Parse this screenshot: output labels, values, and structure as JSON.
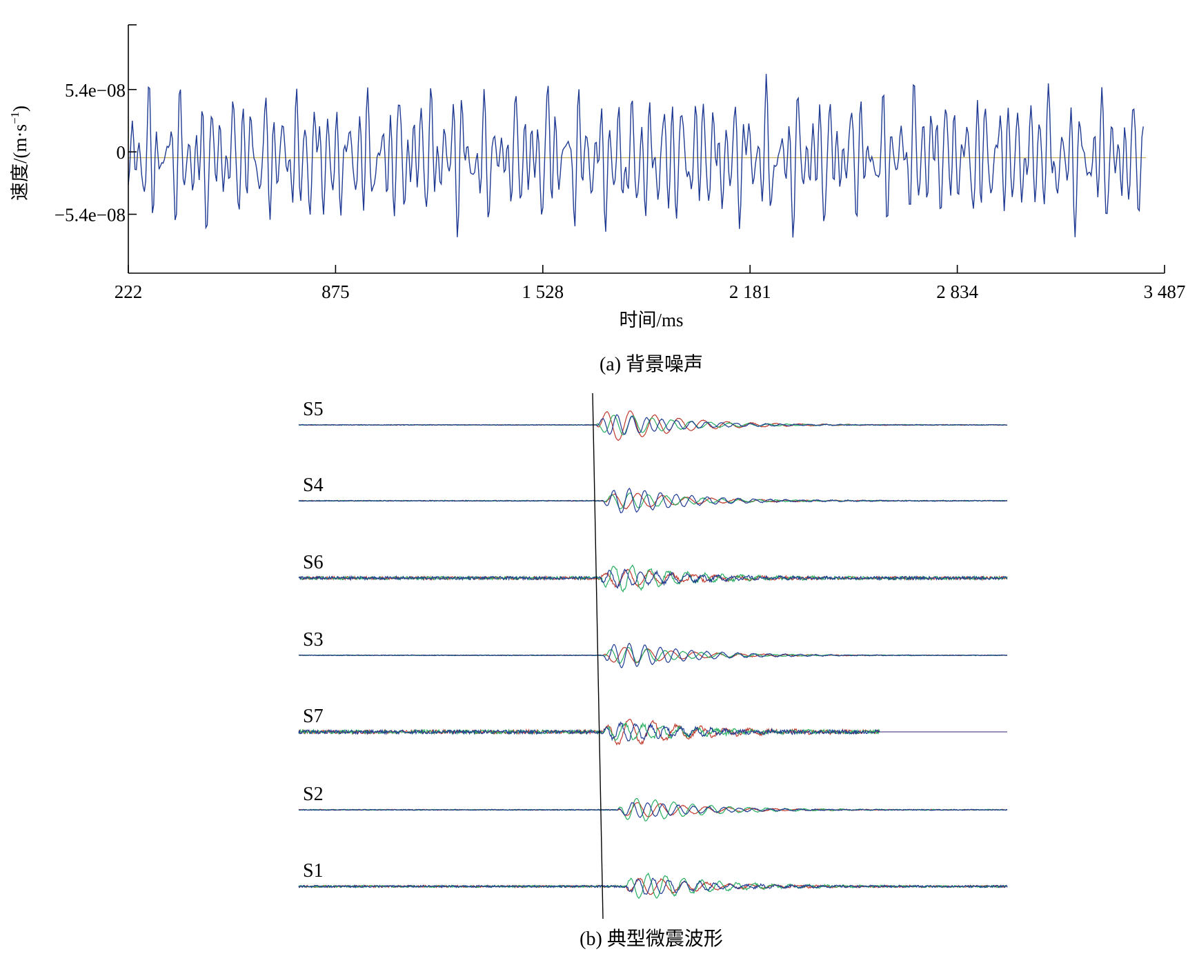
{
  "chart_data": [
    {
      "id": "a",
      "type": "line",
      "caption": "(a) 背景噪声",
      "xlabel": "时间/ms",
      "ylabel_main": "速度/(m·s",
      "ylabel_sup": "−1",
      "ylabel_close": ")",
      "xlim": [
        222,
        3487
      ],
      "ylim": [
        -1.05e-07,
        1.1e-07
      ],
      "x_ticks": [
        {
          "value": 222,
          "label": "222"
        },
        {
          "value": 875,
          "label": "875"
        },
        {
          "value": 1528,
          "label": "1 528"
        },
        {
          "value": 2181,
          "label": "2 181"
        },
        {
          "value": 2834,
          "label": "2 834"
        },
        {
          "value": 3487,
          "label": "3 487"
        }
      ],
      "y_ticks": [
        {
          "value": 5.4e-08,
          "label": "5.4e−08"
        },
        {
          "value": 0,
          "label": "0"
        },
        {
          "value": -5.4e-08,
          "label": "−5.4e−08"
        }
      ],
      "x_range_of_signal": [
        222,
        3420
      ],
      "signal_amplitude_peak": 6.3e-08,
      "baseline_value": -5e-09,
      "series_color": "#1f3a93",
      "baseline_color": "#c9b66b"
    },
    {
      "id": "b",
      "type": "line",
      "caption": "(b) 典型微震波形",
      "stations": [
        {
          "label": "S5",
          "arrival": 0.42,
          "envelope": 1.0,
          "noise": 0.04,
          "dominant": "#c0392b"
        },
        {
          "label": "S4",
          "arrival": 0.43,
          "envelope": 0.8,
          "noise": 0.05,
          "dominant": "#1f3a93"
        },
        {
          "label": "S6",
          "arrival": 0.425,
          "envelope": 0.85,
          "noise": 0.18,
          "dominant": "#27ae60"
        },
        {
          "label": "S3",
          "arrival": 0.43,
          "envelope": 0.8,
          "noise": 0.04,
          "dominant": "#1f3a93"
        },
        {
          "label": "S7",
          "arrival": 0.43,
          "envelope": 0.85,
          "noise": 0.22,
          "dominant": "#c0392b",
          "end": 0.82
        },
        {
          "label": "S2",
          "arrival": 0.45,
          "envelope": 0.75,
          "noise": 0.05,
          "dominant": "#27ae60"
        },
        {
          "label": "S1",
          "arrival": 0.46,
          "envelope": 0.8,
          "noise": 0.12,
          "dominant": "#27ae60"
        }
      ],
      "component_colors": [
        "#c0392b",
        "#27ae60",
        "#1f3a93"
      ],
      "pick_line_color": "#000000"
    }
  ]
}
